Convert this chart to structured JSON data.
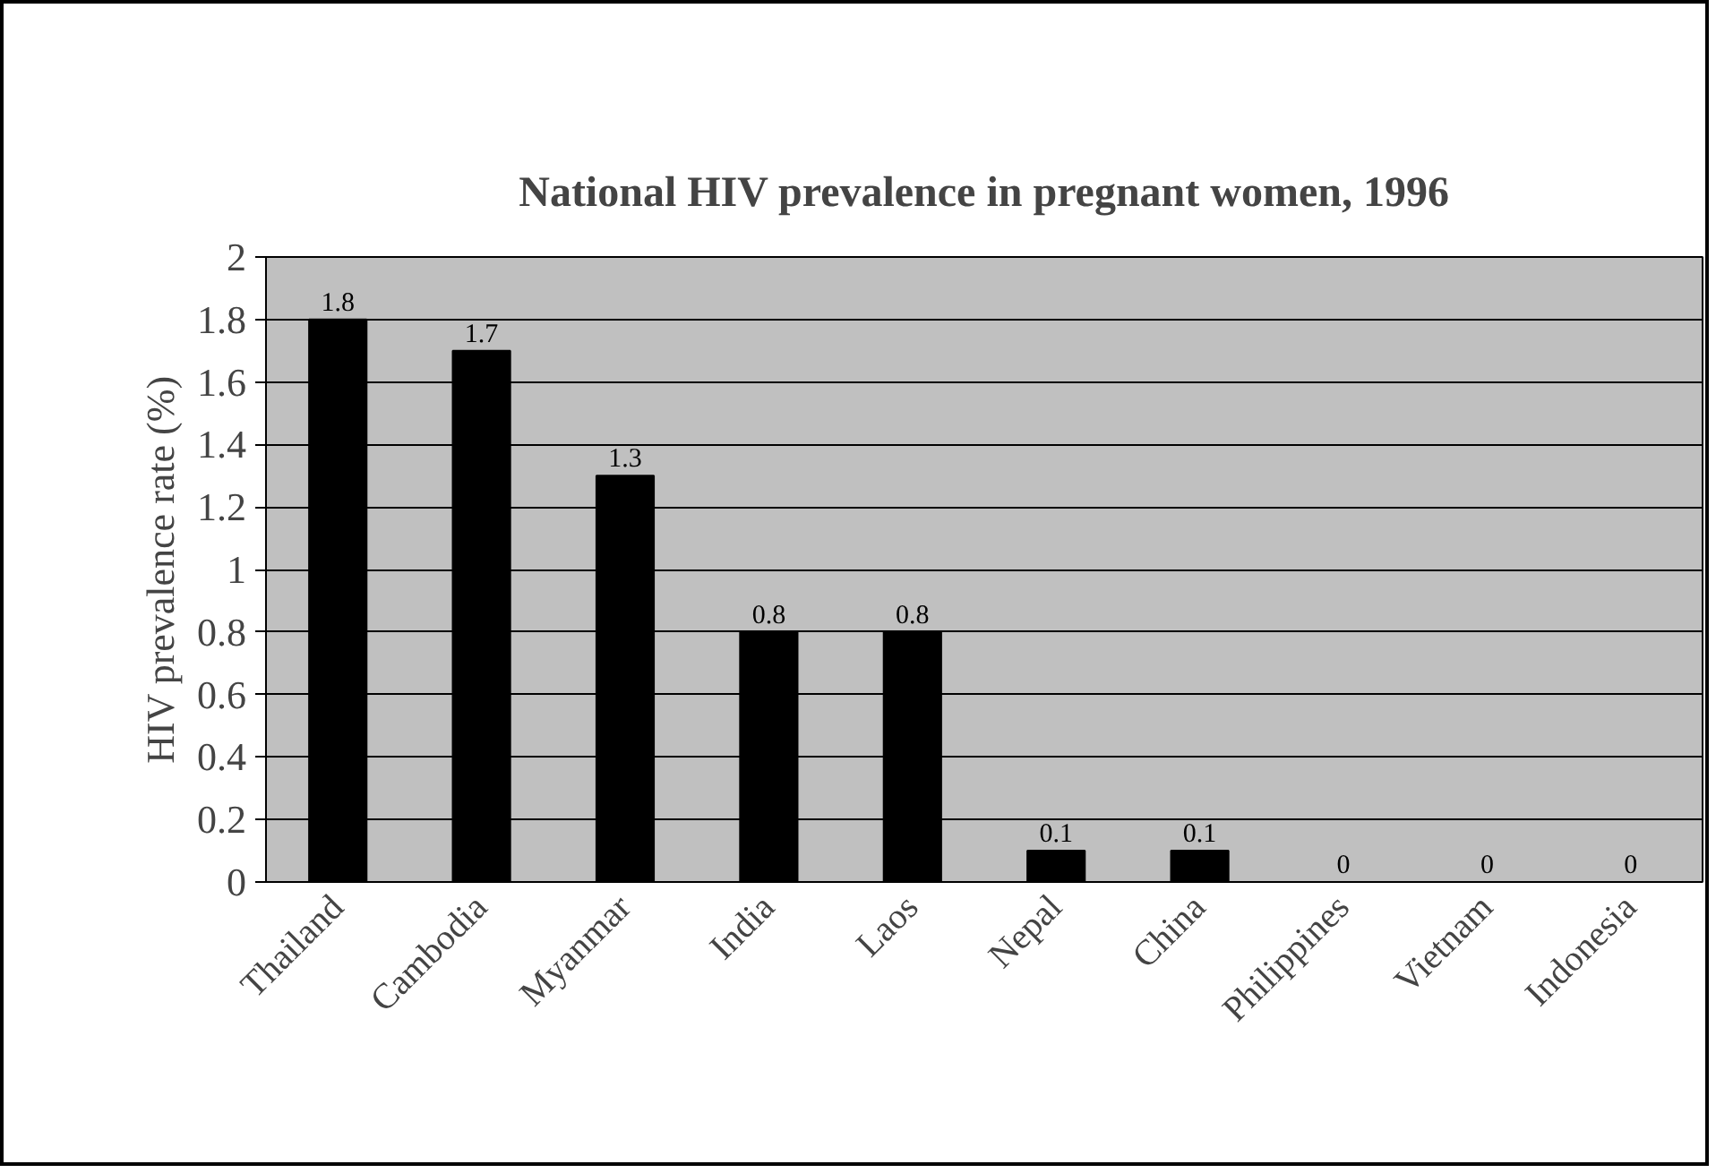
{
  "chart_data": {
    "type": "bar",
    "title": "National HIV prevalence in pregnant women, 1996",
    "ylabel": "HIV prevalence rate (%)",
    "categories": [
      "Thailand",
      "Cambodia",
      "Myanmar",
      "India",
      "Laos",
      "Nepal",
      "China",
      "Philippines",
      "Vietnam",
      "Indonesia"
    ],
    "values": [
      1.8,
      1.7,
      1.3,
      0.8,
      0.8,
      0.1,
      0.1,
      0,
      0,
      0
    ],
    "color": "#000000",
    "ylim": [
      0,
      2
    ],
    "yticks": [
      0,
      0.2,
      0.4,
      0.6,
      0.8,
      1,
      1.2,
      1.4,
      1.6,
      1.8,
      2
    ],
    "grid": "y",
    "data_labels": true
  }
}
